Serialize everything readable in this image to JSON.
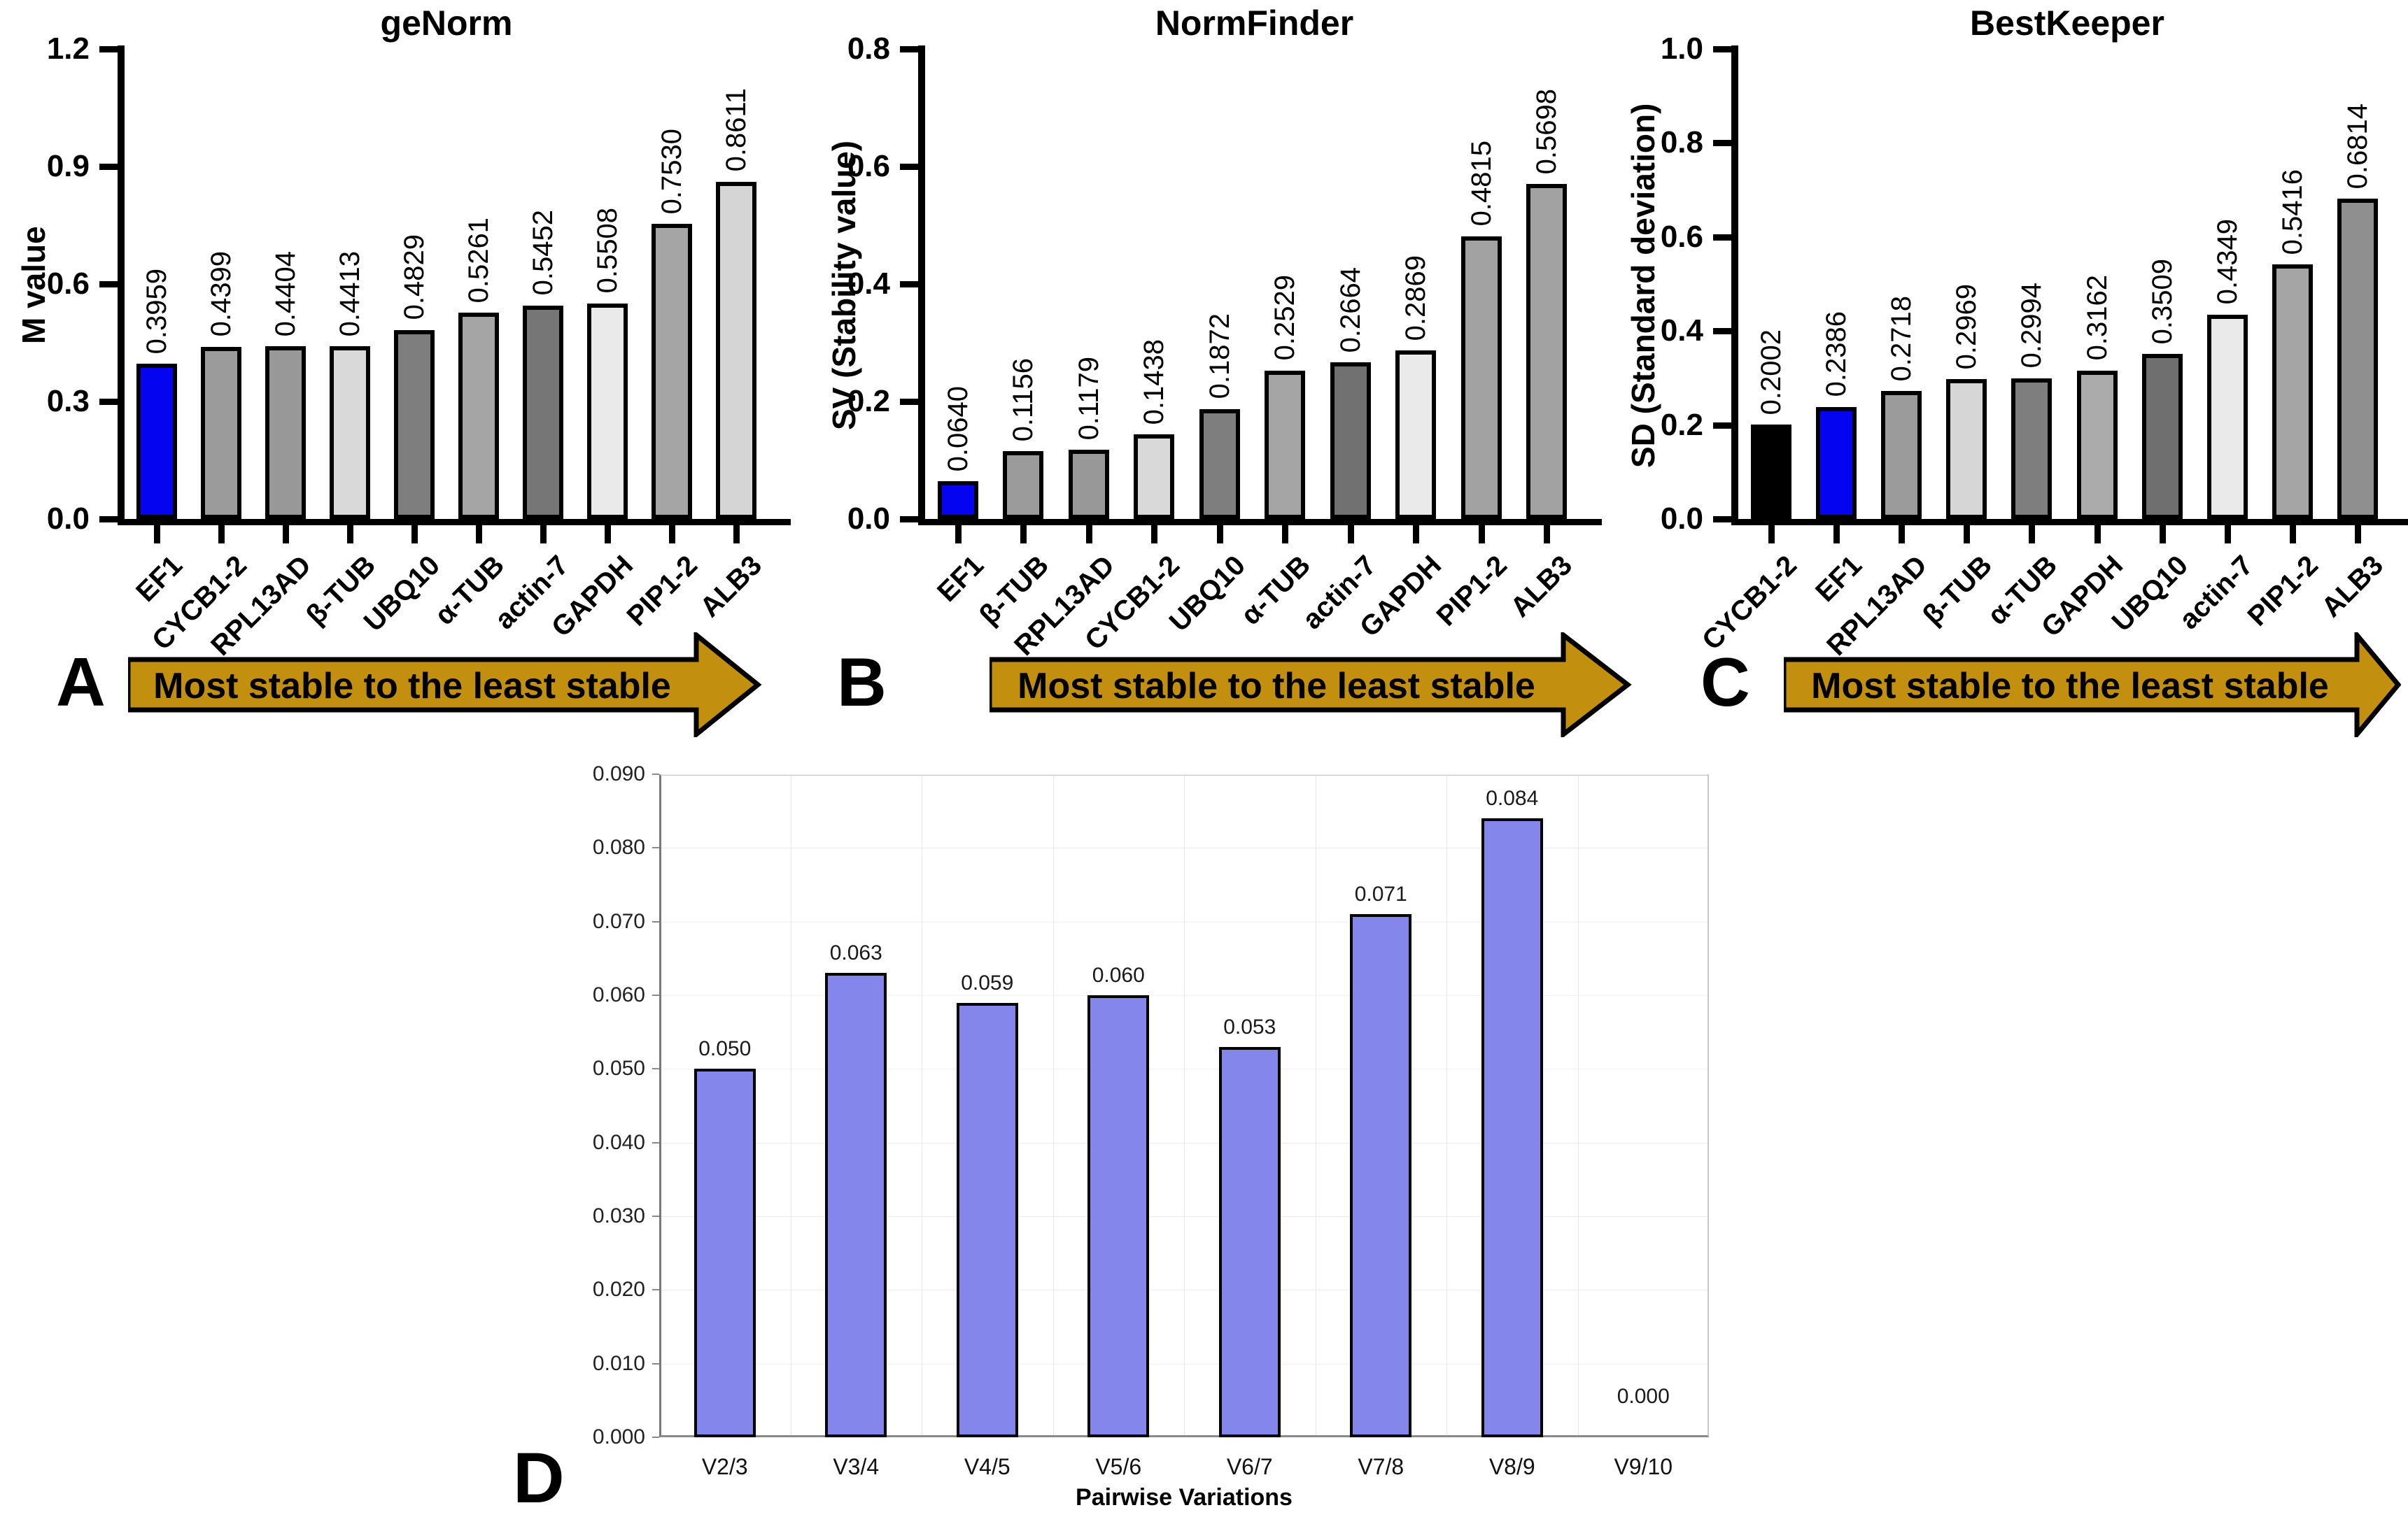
{
  "figure": {
    "colors": {
      "highlight_blue": "#0404f0",
      "arrow_gold": "#c2900e",
      "pairwise_bar_purple": "#8486ec",
      "black_bar": "#000000"
    }
  },
  "chart_data": [
    {
      "id": "A",
      "type": "bar",
      "panel_letter": "A",
      "title": "geNorm",
      "ylabel": "M value",
      "xlabel": "",
      "ylim": [
        0,
        1.2
      ],
      "ytick_labels": [
        "0.0",
        "0.3",
        "0.6",
        "0.9",
        "1.2"
      ],
      "categories": [
        "EF1",
        "CYCB1-2",
        "RPL13AD",
        "β-TUB",
        "UBQ10",
        "α-TUB",
        "actin-7",
        "GAPDH",
        "PIP1-2",
        "ALB3"
      ],
      "values": [
        0.3959,
        0.4399,
        0.4404,
        0.4413,
        0.4829,
        0.5261,
        0.5452,
        0.5508,
        0.753,
        0.8611
      ],
      "value_labels": [
        "0.3959",
        "0.4399",
        "0.4404",
        "0.4413",
        "0.4829",
        "0.5261",
        "0.5452",
        "0.5508",
        "0.7530",
        "0.8611"
      ],
      "bar_colors": [
        "#0404f0",
        "#9b9b9b",
        "#989898",
        "#d9d9d9",
        "#7e7e7e",
        "#a5a5a5",
        "#767676",
        "#eaeaea",
        "#a5a5a5",
        "#d5d5d5"
      ],
      "arrow_label": "Most stable to the least stable",
      "grid": false,
      "legend": "none"
    },
    {
      "id": "B",
      "type": "bar",
      "panel_letter": "B",
      "title": "NormFinder",
      "ylabel": "SV (Stability value)",
      "xlabel": "",
      "ylim": [
        0,
        0.8
      ],
      "ytick_labels": [
        "0.0",
        "0.2",
        "0.4",
        "0.6",
        "0.8"
      ],
      "categories": [
        "EF1",
        "β-TUB",
        "RPL13AD",
        "CYCB1-2",
        "UBQ10",
        "α-TUB",
        "actin-7",
        "GAPDH",
        "PIP1-2",
        "ALB3"
      ],
      "values": [
        0.064,
        0.1156,
        0.1179,
        0.1438,
        0.1872,
        0.2529,
        0.2664,
        0.2869,
        0.4815,
        0.5698
      ],
      "value_labels": [
        "0.0640",
        "0.1156",
        "0.1179",
        "0.1438",
        "0.1872",
        "0.2529",
        "0.2664",
        "0.2869",
        "0.4815",
        "0.5698"
      ],
      "bar_colors": [
        "#0404f0",
        "#9b9b9b",
        "#989898",
        "#d9d9d9",
        "#7e7e7e",
        "#a5a5a5",
        "#717171",
        "#eaeaea",
        "#a2a2a2",
        "#a2a2a2"
      ],
      "arrow_label": "Most stable to the least stable",
      "grid": false,
      "legend": "none"
    },
    {
      "id": "C",
      "type": "bar",
      "panel_letter": "C",
      "title": "BestKeeper",
      "ylabel": "SD (Standard deviation)",
      "xlabel": "",
      "ylim": [
        0,
        1.0
      ],
      "ytick_labels": [
        "0.0",
        "0.2",
        "0.4",
        "0.6",
        "0.8",
        "1.0"
      ],
      "categories": [
        "CYCB1-2",
        "EF1",
        "RPL13AD",
        "β-TUB",
        "α-TUB",
        "GAPDH",
        "UBQ10",
        "actin-7",
        "PIP1-2",
        "ALB3"
      ],
      "values": [
        0.2002,
        0.2386,
        0.2718,
        0.2969,
        0.2994,
        0.3162,
        0.3509,
        0.4349,
        0.5416,
        0.6814
      ],
      "value_labels": [
        "0.2002",
        "0.2386",
        "0.2718",
        "0.2969",
        "0.2994",
        "0.3162",
        "0.3509",
        "0.4349",
        "0.5416",
        "0.6814"
      ],
      "bar_colors": [
        "#000000",
        "#0404f0",
        "#9b9b9b",
        "#d6d6d6",
        "#7e7e7e",
        "#ababab",
        "#6f6f6f",
        "#eaeaea",
        "#a5a5a5",
        "#8f8f8f"
      ],
      "arrow_label": "Most stable to the least stable",
      "grid": false,
      "legend": "none"
    },
    {
      "id": "D",
      "type": "bar",
      "panel_letter": "D",
      "title": "",
      "ylabel": "",
      "xlabel": "Pairwise Variations",
      "ylim": [
        0,
        0.09
      ],
      "ytick_labels": [
        "0.000",
        "0.010",
        "0.020",
        "0.030",
        "0.040",
        "0.050",
        "0.060",
        "0.070",
        "0.080",
        "0.090"
      ],
      "categories": [
        "V2/3",
        "V3/4",
        "V4/5",
        "V5/6",
        "V6/7",
        "V7/8",
        "V8/9",
        "V9/10"
      ],
      "values": [
        0.05,
        0.063,
        0.059,
        0.06,
        0.053,
        0.071,
        0.084,
        0.0
      ],
      "value_labels": [
        "0.050",
        "0.063",
        "0.059",
        "0.060",
        "0.053",
        "0.071",
        "0.084",
        "0.000"
      ],
      "bar_color": "#8486ec",
      "grid": true,
      "legend": "none"
    }
  ]
}
